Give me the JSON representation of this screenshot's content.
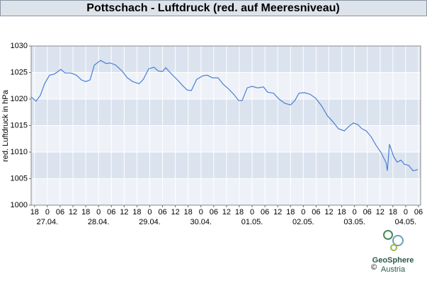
{
  "chart_data": {
    "type": "line",
    "title": "Pottschach - Luftdruck (red. auf Meeresniveau)",
    "y_label": "red. Luftdruck in hPa",
    "x": [
      -1.6,
      0.7,
      2.7,
      4.7,
      7,
      9.3,
      11,
      12.3,
      14.3,
      17,
      19.6,
      22,
      24,
      26,
      28,
      31,
      33.5,
      35.5,
      38,
      41,
      43.5,
      46,
      49,
      51,
      53.5,
      56,
      58,
      60,
      61.5,
      64,
      67,
      69.5,
      71.5,
      73.5,
      76,
      79,
      81,
      83.4,
      86,
      88.4,
      90.7,
      93.4,
      95.7,
      97.3,
      99.7,
      102,
      104.6,
      107.3,
      109.3,
      112,
      114.6,
      117.3,
      120,
      122,
      124,
      126.6,
      129.2,
      131.9,
      134.6,
      137.2,
      139.9,
      142.5,
      145.2,
      147.5,
      149.5,
      151.5,
      153.5,
      155.5,
      157.8,
      160.1,
      162.5,
      164.8,
      165.4,
      166.4,
      168.4,
      170,
      171.8,
      173.4,
      175.4,
      177.4,
      179.7
    ],
    "series": [
      {
        "name": "Luftdruck",
        "color": "#4a7fd4",
        "values": [
          1020.4,
          1019.6,
          1020.7,
          1022.9,
          1024.5,
          1024.7,
          1025.2,
          1025.6,
          1024.9,
          1024.9,
          1024.5,
          1023.6,
          1023.3,
          1023.6,
          1026.4,
          1027.3,
          1026.7,
          1026.8,
          1026.4,
          1025.3,
          1024,
          1023.3,
          1022.9,
          1023.7,
          1025.7,
          1026,
          1025.3,
          1025.2,
          1025.9,
          1024.8,
          1023.6,
          1022.5,
          1021.7,
          1021.6,
          1023.7,
          1024.4,
          1024.5,
          1024,
          1024,
          1022.8,
          1022,
          1020.9,
          1019.7,
          1019.7,
          1022.1,
          1022.4,
          1022.1,
          1022.3,
          1021.3,
          1021.1,
          1020,
          1019.2,
          1018.9,
          1019.7,
          1021.1,
          1021.2,
          1020.9,
          1020.1,
          1018.7,
          1016.9,
          1015.7,
          1014.4,
          1014,
          1014.9,
          1015.5,
          1015.2,
          1014.4,
          1014,
          1012.9,
          1011.3,
          1009.9,
          1008,
          1006.5,
          1011.5,
          1009.1,
          1008.1,
          1008.5,
          1007.7,
          1007.5,
          1006.5,
          1006.7
        ]
      }
    ],
    "xlim": [
      -1.6,
      181
    ],
    "xticks": [
      {
        "value": 0,
        "label": "18"
      },
      {
        "value": 6,
        "label": "0"
      },
      {
        "value": 12,
        "label": "06"
      },
      {
        "value": 18,
        "label": "12"
      },
      {
        "value": 24,
        "label": "18"
      },
      {
        "value": 30,
        "label": "0"
      },
      {
        "value": 36,
        "label": "06"
      },
      {
        "value": 42,
        "label": "12"
      },
      {
        "value": 48,
        "label": "18"
      },
      {
        "value": 54,
        "label": "0"
      },
      {
        "value": 60,
        "label": "06"
      },
      {
        "value": 66,
        "label": "12"
      },
      {
        "value": 72,
        "label": "18"
      },
      {
        "value": 78,
        "label": "0"
      },
      {
        "value": 84,
        "label": "06"
      },
      {
        "value": 90,
        "label": "12"
      },
      {
        "value": 96,
        "label": "18"
      },
      {
        "value": 102,
        "label": "0"
      },
      {
        "value": 108,
        "label": "06"
      },
      {
        "value": 114,
        "label": "12"
      },
      {
        "value": 120,
        "label": "18"
      },
      {
        "value": 126,
        "label": "0"
      },
      {
        "value": 132,
        "label": "06"
      },
      {
        "value": 138,
        "label": "12"
      },
      {
        "value": 144,
        "label": "18"
      },
      {
        "value": 150,
        "label": "0"
      },
      {
        "value": 156,
        "label": "06"
      },
      {
        "value": 162,
        "label": "12"
      },
      {
        "value": 168,
        "label": "18"
      },
      {
        "value": 174,
        "label": "0"
      },
      {
        "value": 180,
        "label": "06"
      }
    ],
    "date_labels": [
      {
        "value": 6,
        "label": "27.04."
      },
      {
        "value": 30,
        "label": "28.04."
      },
      {
        "value": 54,
        "label": "29.04."
      },
      {
        "value": 78,
        "label": "30.04."
      },
      {
        "value": 102,
        "label": "01.05."
      },
      {
        "value": 126,
        "label": "02.05."
      },
      {
        "value": 150,
        "label": "03.05."
      },
      {
        "value": 174,
        "label": "04.05."
      }
    ],
    "ylim": [
      1000,
      1030
    ],
    "yticks": [
      1000,
      1005,
      1010,
      1015,
      1020,
      1025,
      1030
    ],
    "grid": true
  },
  "logo": {
    "copyright": "©",
    "name": "GeoSphere",
    "country": "Austria"
  }
}
